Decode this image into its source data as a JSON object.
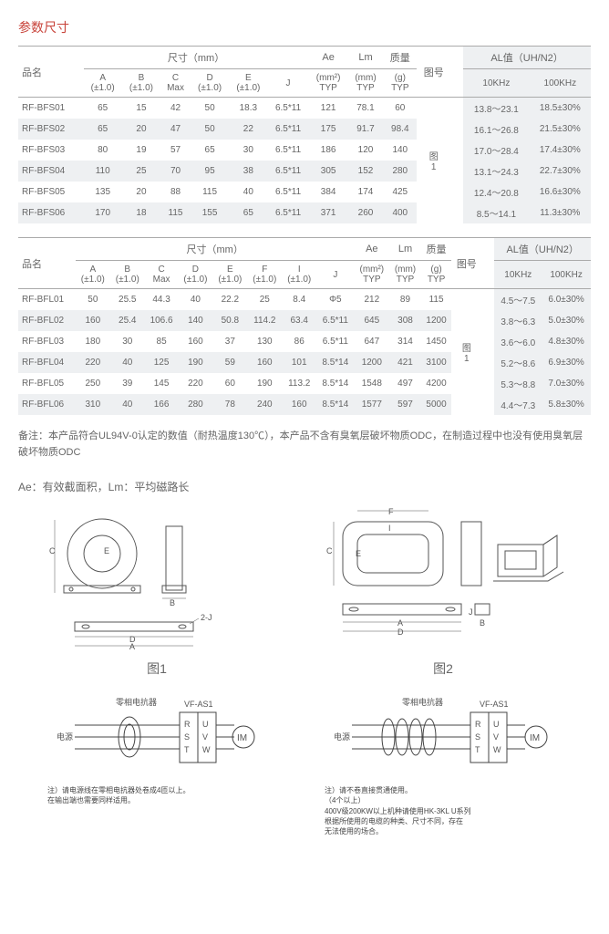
{
  "sectionTitle": "参数尺寸",
  "table1": {
    "headers": {
      "name": "品名",
      "dims": "尺寸（mm）",
      "ae": "Ae",
      "aeSub": "(mm²)\nTYP",
      "lm": "Lm",
      "lmSub": "(mm)\nTYP",
      "mass": "质量",
      "massSub": "(g)\nTYP",
      "fig": "图号",
      "al": "AL值（UH/N2）",
      "a": "A\n(±1.0)",
      "b": "B\n(±1.0)",
      "c": "C\nMax",
      "d": "D\n(±1.0)",
      "e": "E\n(±1.0)",
      "j": "J",
      "k10": "10KHz",
      "k100": "100KHz"
    },
    "figLabel": "图\n1",
    "rows": [
      {
        "name": "RF-BFS01",
        "a": "65",
        "b": "15",
        "c": "42",
        "d": "50",
        "e": "18.3",
        "j": "6.5*11",
        "ae": "121",
        "lm": "78.1",
        "mass": "60",
        "k10": "13.8～23.1",
        "k100": "18.5±30%"
      },
      {
        "name": "RF-BFS02",
        "a": "65",
        "b": "20",
        "c": "47",
        "d": "50",
        "e": "22",
        "j": "6.5*11",
        "ae": "175",
        "lm": "91.7",
        "mass": "98.4",
        "k10": "16.1～26.8",
        "k100": "21.5±30%"
      },
      {
        "name": "RF-BFS03",
        "a": "80",
        "b": "19",
        "c": "57",
        "d": "65",
        "e": "30",
        "j": "6.5*11",
        "ae": "186",
        "lm": "120",
        "mass": "140",
        "k10": "17.0～28.4",
        "k100": "17.4±30%"
      },
      {
        "name": "RF-BFS04",
        "a": "110",
        "b": "25",
        "c": "70",
        "d": "95",
        "e": "38",
        "j": "6.5*11",
        "ae": "305",
        "lm": "152",
        "mass": "280",
        "k10": "13.1～24.3",
        "k100": "22.7±30%"
      },
      {
        "name": "RF-BFS05",
        "a": "135",
        "b": "20",
        "c": "88",
        "d": "115",
        "e": "40",
        "j": "6.5*11",
        "ae": "384",
        "lm": "174",
        "mass": "425",
        "k10": "12.4～20.8",
        "k100": "16.6±30%"
      },
      {
        "name": "RF-BFS06",
        "a": "170",
        "b": "18",
        "c": "115",
        "d": "155",
        "e": "65",
        "j": "6.5*11",
        "ae": "371",
        "lm": "260",
        "mass": "400",
        "k10": "8.5～14.1",
        "k100": "11.3±30%"
      }
    ]
  },
  "table2": {
    "headers": {
      "name": "品名",
      "dims": "尺寸（mm）",
      "ae": "Ae",
      "aeSub": "(mm²)\nTYP",
      "lm": "Lm",
      "lmSub": "(mm)\nTYP",
      "mass": "质量",
      "massSub": "(g)\nTYP",
      "fig": "图号",
      "al": "AL值（UH/N2）",
      "a": "A\n(±1.0)",
      "b": "B\n(±1.0)",
      "c": "C\nMax",
      "d": "D\n(±1.0)",
      "e": "E\n(±1.0)",
      "f": "F\n(±1.0)",
      "i": "I\n(±1.0)",
      "j": "J",
      "k10": "10KHz",
      "k100": "100KHz"
    },
    "figLabel": "图\n1",
    "rows": [
      {
        "name": "RF-BFL01",
        "a": "50",
        "b": "25.5",
        "c": "44.3",
        "d": "40",
        "e": "22.2",
        "f": "25",
        "i": "8.4",
        "j": "Φ5",
        "ae": "212",
        "lm": "89",
        "mass": "115",
        "k10": "4.5～7.5",
        "k100": "6.0±30%"
      },
      {
        "name": "RF-BFL02",
        "a": "160",
        "b": "25.4",
        "c": "106.6",
        "d": "140",
        "e": "50.8",
        "f": "114.2",
        "i": "63.4",
        "j": "6.5*11",
        "ae": "645",
        "lm": "308",
        "mass": "1200",
        "k10": "3.8～6.3",
        "k100": "5.0±30%"
      },
      {
        "name": "RF-BFL03",
        "a": "180",
        "b": "30",
        "c": "85",
        "d": "160",
        "e": "37",
        "f": "130",
        "i": "86",
        "j": "6.5*11",
        "ae": "647",
        "lm": "314",
        "mass": "1450",
        "k10": "3.6～6.0",
        "k100": "4.8±30%"
      },
      {
        "name": "RF-BFL04",
        "a": "220",
        "b": "40",
        "c": "125",
        "d": "190",
        "e": "59",
        "f": "160",
        "i": "101",
        "j": "8.5*14",
        "ae": "1200",
        "lm": "421",
        "mass": "3100",
        "k10": "5.2～8.6",
        "k100": "6.9±30%"
      },
      {
        "name": "RF-BFL05",
        "a": "250",
        "b": "39",
        "c": "145",
        "d": "220",
        "e": "60",
        "f": "190",
        "i": "113.2",
        "j": "8.5*14",
        "ae": "1548",
        "lm": "497",
        "mass": "4200",
        "k10": "5.3～8.8",
        "k100": "7.0±30%"
      },
      {
        "name": "RF-BFL06",
        "a": "310",
        "b": "40",
        "c": "166",
        "d": "280",
        "e": "78",
        "f": "240",
        "i": "160",
        "j": "8.5*14",
        "ae": "1577",
        "lm": "597",
        "mass": "5000",
        "k10": "4.4～7.3",
        "k100": "5.8±30%"
      }
    ]
  },
  "note": "备注：本产品符合UL94V-0认定的数值（耐热温度130℃），本产品不含有臭氧层破坏物质ODC，在制造过程中也没有使用臭氧层破坏物质ODC",
  "defLine": "Ae：有效截面积，Lm：平均磁路长",
  "diag1Label": "图1",
  "diag2Label": "图2",
  "circuit": {
    "reactor": "零相电抗器",
    "power": "电源",
    "model": "VF-AS1",
    "r": "R",
    "s": "S",
    "t": "T",
    "u": "U",
    "v": "V",
    "w": "W",
    "im": "IM",
    "note1": "注）请电源线在零相电抗器处卷成4匝以上。\n在输出端也需要同样适用。",
    "note2": "注）请不卷直接贯通使用。\n（4个以上）\n400V级200KW以上机种请使用HK-3KL U系列\n根据所使用的电缆的种类、尺寸不同，存在\n无法使用的场合。"
  }
}
